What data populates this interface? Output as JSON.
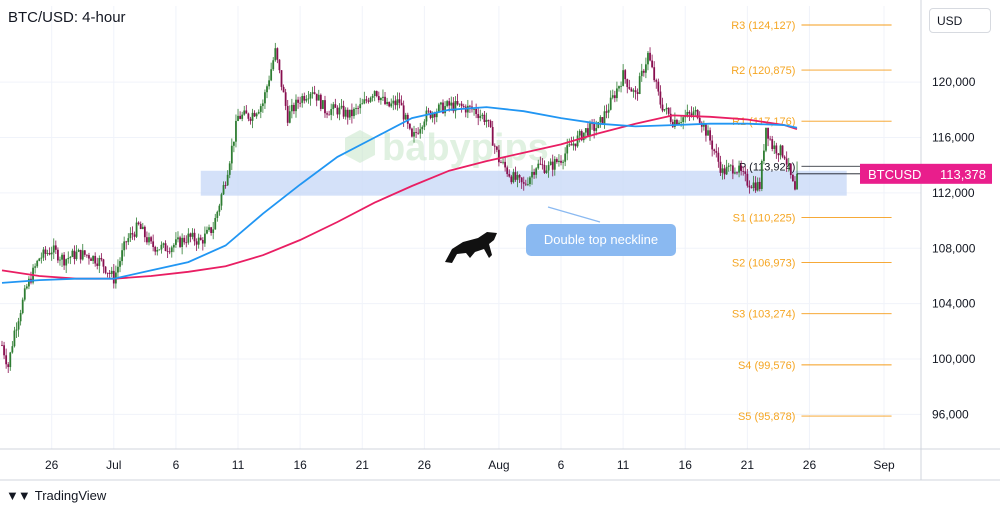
{
  "header": {
    "title": "BTC/USD: 4-hour",
    "currency_button": "USD"
  },
  "watermark": "babypips",
  "footer": {
    "brand": "TradingView",
    "logo_icon": "tradingview-logo-icon"
  },
  "colors": {
    "bull_candle": "#2e7d32",
    "bear_candle": "#880e4f",
    "sma_fast": "#2196f3",
    "sma_slow": "#e91e63",
    "pivot_lines": "#f59d1b",
    "pivot_text": "#f5a623",
    "zone": "#c9d9f7",
    "callout": "#8ab9f1",
    "price_tag": "#e91e8c",
    "watermark": "#c8e6c9"
  },
  "price_tag": {
    "symbol": "BTCUSD",
    "value": "113,378"
  },
  "annotations": {
    "callout_text": "Double top neckline",
    "bull_icon": "bull-icon"
  },
  "pivots": [
    {
      "label": "R3 (124,127)",
      "value": 124127
    },
    {
      "label": "R2 (120,875)",
      "value": 120875
    },
    {
      "label": "R1 (117,176)",
      "value": 117176
    },
    {
      "label": "P (113,924)",
      "value": 113924
    },
    {
      "label": "S1 (110,225)",
      "value": 110225
    },
    {
      "label": "S2 (106,973)",
      "value": 106973
    },
    {
      "label": "S3 (103,274)",
      "value": 103274
    },
    {
      "label": "S4 (99,576)",
      "value": 99576
    },
    {
      "label": "S5 (95,878)",
      "value": 95878
    }
  ],
  "chart_data": {
    "type": "candlestick",
    "title": "BTC/USD: 4-hour",
    "ylim": [
      93500,
      125500
    ],
    "y_ticks": [
      96000,
      100000,
      104000,
      108000,
      112000,
      116000,
      120000
    ],
    "y_tick_labels": [
      "96,000",
      "100,000",
      "104,000",
      "108,000",
      "112,000",
      "116,000",
      "120,000"
    ],
    "x_range": [
      "Jun 22",
      "Sep 1"
    ],
    "x_ticks": [
      {
        "date": "Jun 26",
        "label": "26"
      },
      {
        "date": "Jul 1",
        "label": "Jul"
      },
      {
        "date": "Jul 6",
        "label": "6"
      },
      {
        "date": "Jul 11",
        "label": "11"
      },
      {
        "date": "Jul 16",
        "label": "16"
      },
      {
        "date": "Jul 21",
        "label": "21"
      },
      {
        "date": "Jul 26",
        "label": "26"
      },
      {
        "date": "Aug 1",
        "label": "Aug"
      },
      {
        "date": "Aug 6",
        "label": "6"
      },
      {
        "date": "Aug 11",
        "label": "11"
      },
      {
        "date": "Aug 16",
        "label": "16"
      },
      {
        "date": "Aug 21",
        "label": "21"
      },
      {
        "date": "Aug 26",
        "label": "26"
      },
      {
        "date": "Sep 1",
        "label": "Sep"
      }
    ],
    "price_path": [
      [
        "Jun 22",
        101000
      ],
      [
        "Jun 22 12:00",
        99500
      ],
      [
        "Jun 23",
        102000
      ],
      [
        "Jun 24",
        105200
      ],
      [
        "Jun 25",
        107300
      ],
      [
        "Jun 26",
        107900
      ],
      [
        "Jun 27",
        107200
      ],
      [
        "Jun 28",
        107600
      ],
      [
        "Jun 29",
        107500
      ],
      [
        "Jun 30",
        107000
      ],
      [
        "Jul 1",
        105800
      ],
      [
        "Jul 2",
        108500
      ],
      [
        "Jul 3",
        109600
      ],
      [
        "Jul 4",
        108200
      ],
      [
        "Jul 5",
        108000
      ],
      [
        "Jul 6",
        108300
      ],
      [
        "Jul 7",
        108800
      ],
      [
        "Jul 8",
        108500
      ],
      [
        "Jul 9",
        109500
      ],
      [
        "Jul 10",
        113000
      ],
      [
        "Jul 11",
        117500
      ],
      [
        "Jul 12",
        117600
      ],
      [
        "Jul 13",
        118500
      ],
      [
        "Jul 14",
        122200
      ],
      [
        "Jul 15",
        117500
      ],
      [
        "Jul 16",
        118800
      ],
      [
        "Jul 17",
        119500
      ],
      [
        "Jul 18",
        118000
      ],
      [
        "Jul 19",
        118000
      ],
      [
        "Jul 20",
        117600
      ],
      [
        "Jul 21",
        118300
      ],
      [
        "Jul 22",
        119500
      ],
      [
        "Jul 23",
        118200
      ],
      [
        "Jul 24",
        118600
      ],
      [
        "Jul 25",
        115800
      ],
      [
        "Jul 26",
        117500
      ],
      [
        "Jul 27",
        118000
      ],
      [
        "Jul 28",
        118300
      ],
      [
        "Jul 29",
        118200
      ],
      [
        "Jul 30",
        118000
      ],
      [
        "Jul 31",
        117300
      ],
      [
        "Aug 1",
        114400
      ],
      [
        "Aug 2",
        113200
      ],
      [
        "Aug 3",
        112500
      ],
      [
        "Aug 4",
        114000
      ],
      [
        "Aug 5",
        113800
      ],
      [
        "Aug 6",
        114500
      ],
      [
        "Aug 7",
        115600
      ],
      [
        "Aug 8",
        116500
      ],
      [
        "Aug 9",
        116800
      ],
      [
        "Aug 10",
        118500
      ],
      [
        "Aug 11",
        120500
      ],
      [
        "Aug 12",
        119000
      ],
      [
        "Aug 13",
        122000
      ],
      [
        "Aug 14",
        118500
      ],
      [
        "Aug 15",
        117200
      ],
      [
        "Aug 16",
        117500
      ],
      [
        "Aug 17",
        117800
      ],
      [
        "Aug 18",
        115800
      ],
      [
        "Aug 19",
        113500
      ],
      [
        "Aug 20",
        113900
      ],
      [
        "Aug 21",
        112800
      ],
      [
        "Aug 22",
        112500
      ],
      [
        "Aug 22 12:00",
        116800
      ],
      [
        "Aug 23",
        115400
      ],
      [
        "Aug 24",
        114800
      ],
      [
        "Aug 24 20:00",
        112000
      ],
      [
        "Aug 25",
        113378
      ]
    ],
    "sma_fast": [
      [
        "Jun 22",
        105500
      ],
      [
        "Jun 25",
        105700
      ],
      [
        "Jun 28",
        105800
      ],
      [
        "Jul 1",
        105800
      ],
      [
        "Jul 4",
        106400
      ],
      [
        "Jul 7",
        107000
      ],
      [
        "Jul 10",
        108200
      ],
      [
        "Jul 13",
        110500
      ],
      [
        "Jul 16",
        112600
      ],
      [
        "Jul 19",
        114600
      ],
      [
        "Jul 22",
        116000
      ],
      [
        "Jul 25",
        117400
      ],
      [
        "Jul 28",
        118000
      ],
      [
        "Jul 31",
        118200
      ],
      [
        "Aug 3",
        117900
      ],
      [
        "Aug 6",
        117400
      ],
      [
        "Aug 9",
        117000
      ],
      [
        "Aug 12",
        116800
      ],
      [
        "Aug 15",
        116900
      ],
      [
        "Aug 18",
        117000
      ],
      [
        "Aug 21",
        117000
      ],
      [
        "Aug 24",
        116900
      ],
      [
        "Aug 25",
        116700
      ]
    ],
    "sma_slow": [
      [
        "Jun 22",
        106400
      ],
      [
        "Jun 25",
        106000
      ],
      [
        "Jun 28",
        105800
      ],
      [
        "Jul 1",
        105800
      ],
      [
        "Jul 4",
        106000
      ],
      [
        "Jul 7",
        106300
      ],
      [
        "Jul 10",
        106700
      ],
      [
        "Jul 13",
        107500
      ],
      [
        "Jul 16",
        108600
      ],
      [
        "Jul 19",
        109900
      ],
      [
        "Jul 22",
        111300
      ],
      [
        "Jul 25",
        112500
      ],
      [
        "Jul 28",
        113600
      ],
      [
        "Jul 31",
        114300
      ],
      [
        "Aug 3",
        114900
      ],
      [
        "Aug 6",
        115500
      ],
      [
        "Aug 9",
        116300
      ],
      [
        "Aug 12",
        117000
      ],
      [
        "Aug 15",
        117600
      ],
      [
        "Aug 18",
        117500
      ],
      [
        "Aug 21",
        117300
      ],
      [
        "Aug 24",
        116900
      ],
      [
        "Aug 25",
        116600
      ]
    ],
    "neckline_zone": {
      "from": 111800,
      "to": 113600,
      "start": "Jul 8",
      "end": "Aug 29"
    },
    "pivot_range": {
      "start": "Aug 26",
      "end": "Aug 31"
    },
    "last_price": 113378
  }
}
